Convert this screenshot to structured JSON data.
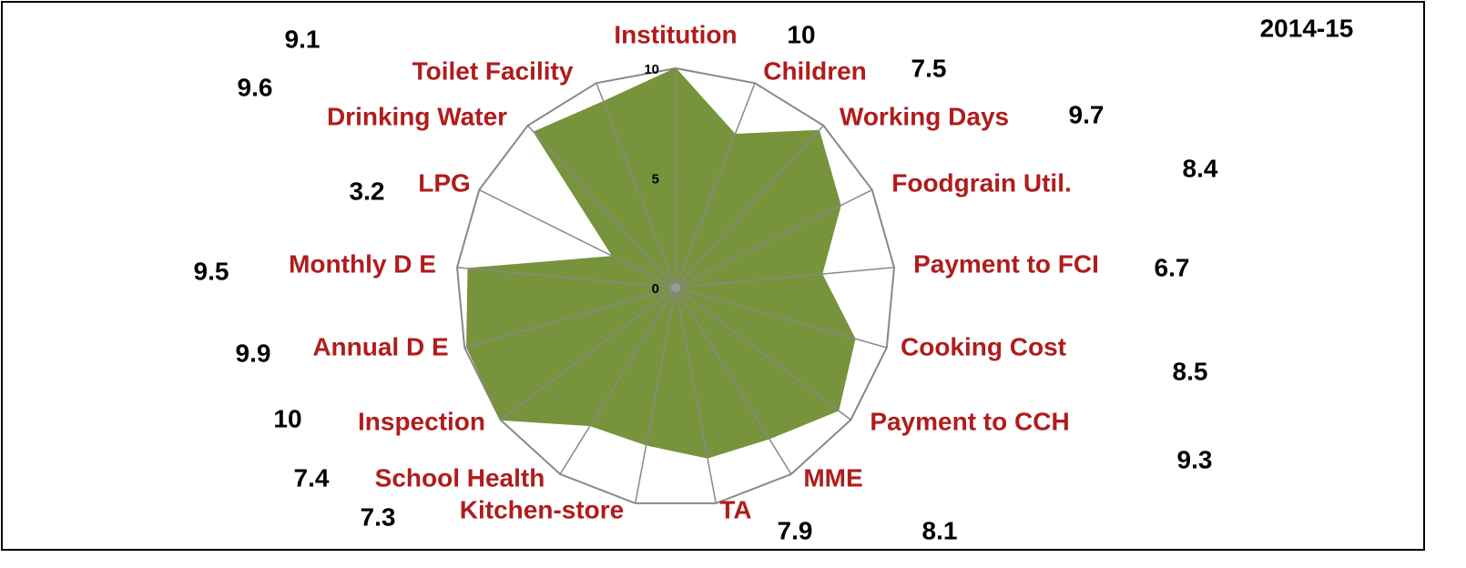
{
  "chart_data": {
    "type": "radar",
    "title": "2014-15",
    "categories": [
      "Institution",
      "Children",
      "Working Days",
      "Foodgrain Util.",
      "Payment to FCI",
      "Cooking Cost",
      "Payment to CCH",
      "MME",
      "TA",
      "Kitchen-store",
      "School Health",
      "Inspection",
      "Annual D E",
      "Monthly D E",
      "LPG",
      "Drinking Water",
      "Toilet Facility"
    ],
    "values": [
      10,
      7.5,
      9.7,
      8.4,
      6.7,
      8.5,
      9.3,
      8.1,
      7.9,
      7.3,
      7.4,
      10,
      9.9,
      9.5,
      3.2,
      9.6,
      9.1
    ],
    "color": "#77933c",
    "ylim": [
      0,
      10
    ],
    "yticks": [
      0,
      5,
      10
    ]
  }
}
